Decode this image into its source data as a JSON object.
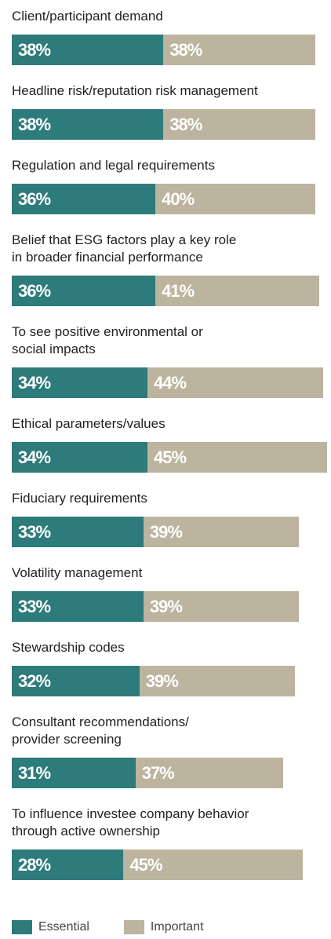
{
  "chart_data": {
    "type": "stacked-bar-horizontal",
    "categories": [
      "Client/participant demand",
      "Headline risk/reputation risk management",
      "Regulation and legal requirements",
      "Belief that ESG factors play a key role\nin broader financial performance",
      "To see positive environmental or\nsocial impacts",
      "Ethical parameters/values",
      "Fiduciary requirements",
      "Volatility management",
      "Stewardship codes",
      "Consultant recommendations/\nprovider screening",
      "To influence investee company behavior\nthrough active ownership"
    ],
    "series": [
      {
        "name": "Essential",
        "color": "#2e7b7b",
        "values": [
          38,
          38,
          36,
          36,
          34,
          34,
          33,
          33,
          32,
          31,
          28
        ],
        "value_labels": [
          "38%",
          "38%",
          "36%",
          "36%",
          "34%",
          "34%",
          "33%",
          "33%",
          "32%",
          "31%",
          "28%"
        ]
      },
      {
        "name": "Important",
        "color": "#bcb49e",
        "values": [
          38,
          38,
          40,
          41,
          44,
          45,
          39,
          39,
          39,
          37,
          45
        ],
        "value_labels": [
          "38%",
          "38%",
          "40%",
          "41%",
          "44%",
          "45%",
          "39%",
          "39%",
          "39%",
          "37%",
          "45%"
        ]
      }
    ],
    "xlim": [
      0,
      80
    ]
  }
}
